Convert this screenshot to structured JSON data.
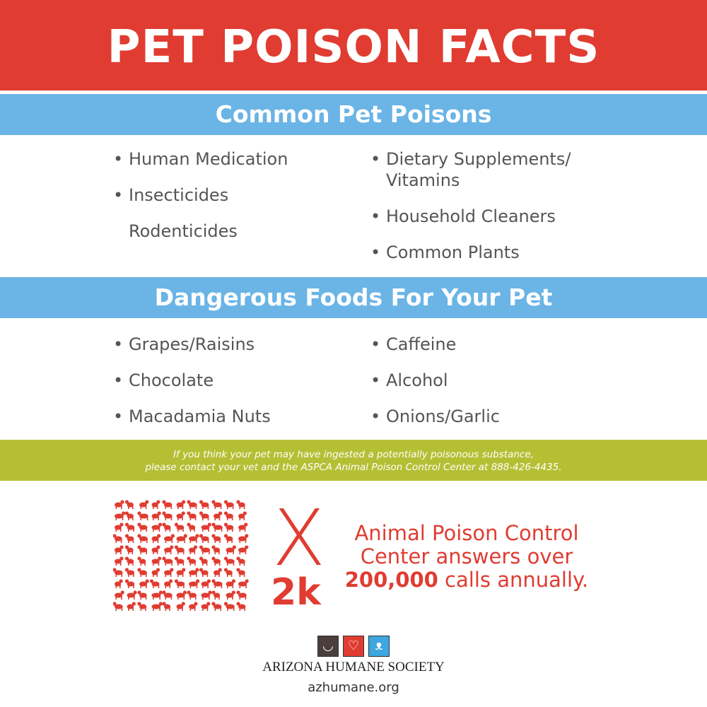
{
  "title": "PET POISON FACTS",
  "colors": {
    "red": "#e03c31",
    "blue": "#6ab4e6",
    "green": "#b5bf34"
  },
  "common": {
    "heading": "Common Pet Poisons",
    "left": [
      {
        "text": "Human Medication",
        "bullet": true
      },
      {
        "text": "Insecticides",
        "bullet": true
      },
      {
        "text": "Rodenticides",
        "bullet": false
      }
    ],
    "right": [
      {
        "text": "Dietary Supplements/ Vitamins",
        "bullet": true
      },
      {
        "text": "Household Cleaners",
        "bullet": true
      },
      {
        "text": "Common Plants",
        "bullet": true
      }
    ]
  },
  "foods": {
    "heading": "Dangerous Foods For Your Pet",
    "left": [
      "Grapes/Raisins",
      "Chocolate",
      "Macadamia Nuts"
    ],
    "right": [
      "Caffeine",
      "Alcohol",
      "Onions/Garlic"
    ]
  },
  "notice": {
    "line1": "If you think your pet may have ingested a potentially poisonous substance,",
    "line2": "please contact your vet and the ASPCA Animal Poison Control Center at 888-426-4435."
  },
  "stat": {
    "multiplier_symbol": "X",
    "multiplier": "2k",
    "line1": "Animal Poison Control",
    "line2": "Center answers over",
    "number": "200,000",
    "line3_rest": " calls annually."
  },
  "logo": {
    "icons": [
      "dog-icon",
      "heart-icon",
      "cat-icon"
    ],
    "org": "ARIZONA HUMANE SOCIETY",
    "url": "azhumane.org"
  }
}
